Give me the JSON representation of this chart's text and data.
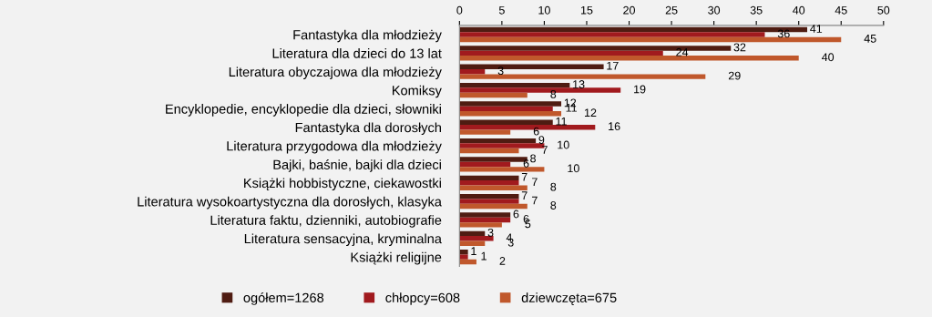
{
  "chart_data": {
    "type": "bar",
    "orientation": "horizontal",
    "data_labels": true,
    "legend": "bottom",
    "grid": false,
    "categories": [
      "Fantastyka dla młodzieży",
      "Literatura dla dzieci do 13 lat",
      "Literatura obyczajowa dla młodzieży",
      "Komiksy",
      "Encyklopedie, encyklopedie dla dzieci, słowniki",
      "Fantastyka dla dorosłych",
      "Literatura przygodowa dla młodzieży",
      "Bajki, baśnie, bajki dla dzieci",
      "Książki hobbistyczne, ciekawostki",
      "Literatura wysokoartystyczna dla dorosłych, klasyka",
      "Literatura faktu, dzienniki, autobiografie",
      "Literatura sensacyjna, kryminalna",
      "Książki religijne"
    ],
    "series": [
      {
        "name": "ogółem=1268",
        "color": "#4f1c12",
        "values": [
          41,
          32,
          17,
          13,
          12,
          11,
          9,
          8,
          7,
          7,
          6,
          3,
          1
        ]
      },
      {
        "name": "chłopcy=608",
        "color": "#a11a1e",
        "values": [
          36,
          24,
          3,
          19,
          11,
          16,
          10,
          6,
          7,
          7,
          6,
          4,
          1
        ]
      },
      {
        "name": "dziewczęta=675",
        "color": "#c0582c",
        "values": [
          45,
          40,
          29,
          8,
          12,
          6,
          7,
          10,
          8,
          8,
          5,
          3,
          2
        ]
      }
    ],
    "xlim": [
      0,
      50
    ],
    "xticks": [
      0,
      5,
      10,
      15,
      20,
      25,
      30,
      35,
      40,
      45,
      50
    ]
  }
}
